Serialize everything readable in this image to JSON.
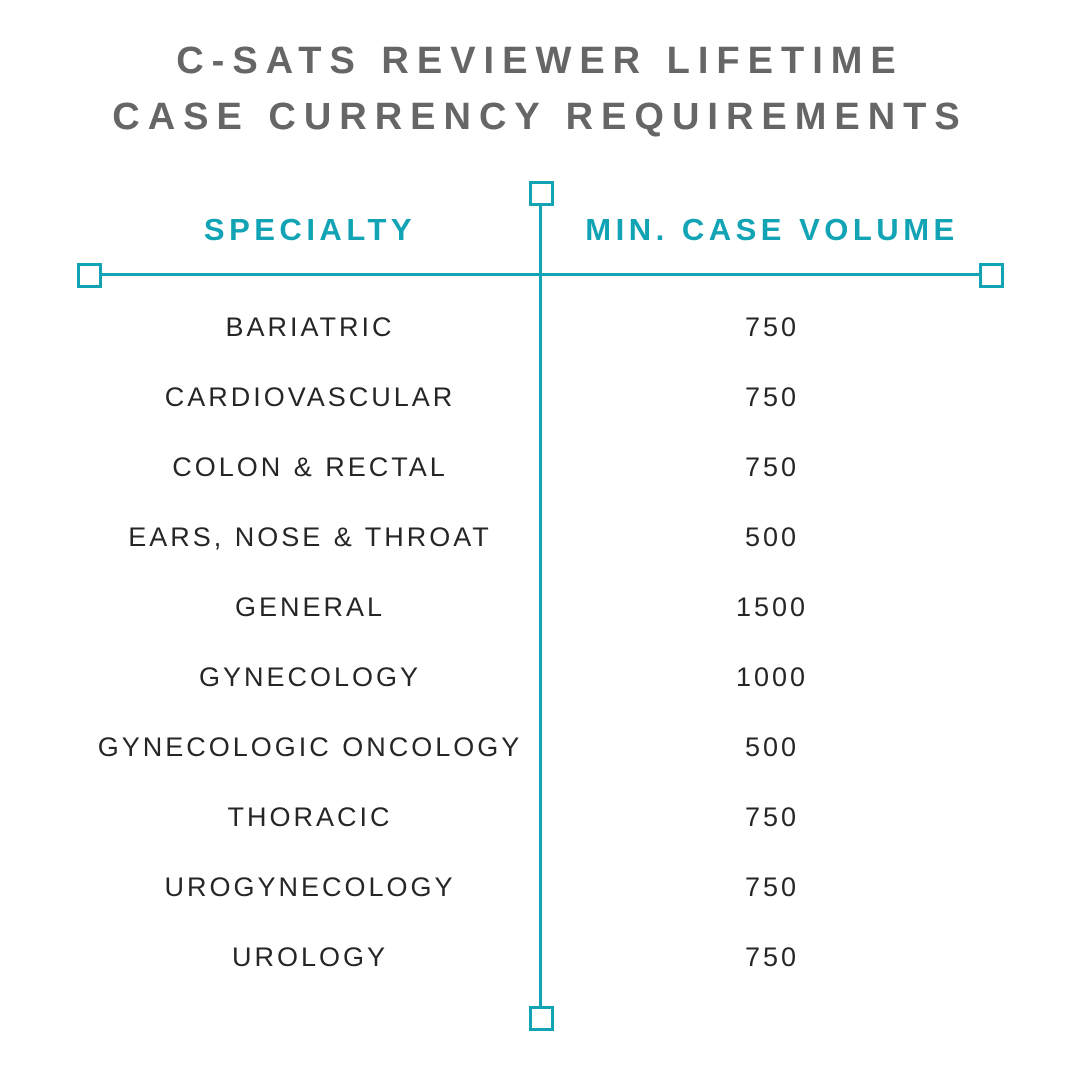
{
  "title": {
    "line1": "C-SATS REVIEWER LIFETIME",
    "line2": "CASE CURRENCY REQUIREMENTS"
  },
  "table": {
    "headers": {
      "specialty": "SPECIALTY",
      "volume": "MIN. CASE VOLUME"
    },
    "rows": [
      {
        "specialty": "BARIATRIC",
        "volume": "750"
      },
      {
        "specialty": "CARDIOVASCULAR",
        "volume": "750"
      },
      {
        "specialty": "COLON & RECTAL",
        "volume": "750"
      },
      {
        "specialty": "EARS, NOSE & THROAT",
        "volume": "500"
      },
      {
        "specialty": "GENERAL",
        "volume": "1500"
      },
      {
        "specialty": "GYNECOLOGY",
        "volume": "1000"
      },
      {
        "specialty": "GYNECOLOGIC ONCOLOGY",
        "volume": "500"
      },
      {
        "specialty": "THORACIC",
        "volume": "750"
      },
      {
        "specialty": "UROGYNECOLOGY",
        "volume": "750"
      },
      {
        "specialty": "UROLOGY",
        "volume": "750"
      }
    ]
  },
  "colors": {
    "accent": "#12a4b5",
    "title": "#666666",
    "text": "#262626",
    "background": "#ffffff"
  }
}
